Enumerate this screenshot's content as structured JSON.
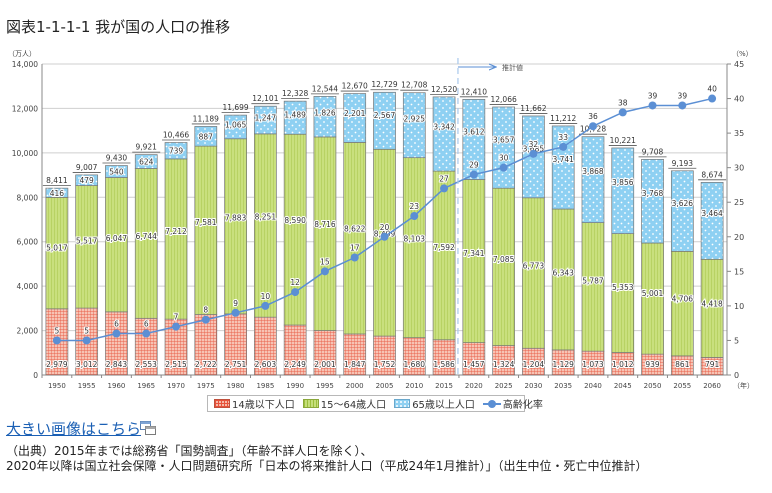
{
  "title": "図表1-1-1-1 我が国の人口の推移",
  "link": {
    "label": "大きい画像はこちら",
    "icon": "window-icon"
  },
  "source": {
    "line1": "（出典）2015年までは総務省「国勢調査」（年齢不詳人口を除く）、",
    "line2": "2020年以降は国立社会保障・人口問題研究所「日本の将来推計人口（平成24年1月推計）」（出生中位・死亡中位推計）"
  },
  "legend": {
    "young": "14歳以下人口",
    "working": "15～64歳人口",
    "elderly": "65歳以上人口",
    "ratio": "高齢化率"
  },
  "colors": {
    "young": "#f5b9a8",
    "young_grid": "#e8523a",
    "working": "#c5de7a",
    "working_stripe": "#9cbf3c",
    "elderly": "#8ed0f2",
    "line": "#5b8fd4",
    "axis": "#888888",
    "grid": "#cccccc"
  },
  "chart_data": {
    "type": "bar",
    "stacked": true,
    "title": "我が国の人口の推移",
    "ylabel": "（万人）",
    "y2label": "（%）",
    "xlabel": "（年）",
    "ylim": [
      0,
      14000
    ],
    "y2lim": [
      0,
      45
    ],
    "yticks": [
      "0",
      "2,000",
      "4,000",
      "6,000",
      "8,000",
      "10,000",
      "12,000",
      "14,000"
    ],
    "y2ticks": [
      "0",
      "5",
      "10",
      "15",
      "20",
      "25",
      "30",
      "35",
      "40",
      "45"
    ],
    "grid": true,
    "legend_position": "bottom",
    "projection_label": "推計値",
    "projection_start": "2020",
    "categories": [
      "1950",
      "1955",
      "1960",
      "1965",
      "1970",
      "1975",
      "1980",
      "1985",
      "1990",
      "1995",
      "2000",
      "2005",
      "2010",
      "2015",
      "2020",
      "2025",
      "2030",
      "2035",
      "2040",
      "2045",
      "2050",
      "2055",
      "2060"
    ],
    "series": [
      {
        "name": "14歳以下人口",
        "values": [
          2979,
          3012,
          2843,
          2553,
          2515,
          2722,
          2751,
          2603,
          2249,
          2001,
          1847,
          1752,
          1680,
          1586,
          1457,
          1324,
          1204,
          1129,
          1073,
          1012,
          939,
          861,
          791
        ]
      },
      {
        "name": "15～64歳人口",
        "values": [
          5017,
          5517,
          6047,
          6744,
          7212,
          7581,
          7883,
          8251,
          8590,
          8716,
          8622,
          8409,
          8103,
          7592,
          7341,
          7085,
          6773,
          6343,
          5787,
          5353,
          5001,
          4706,
          4418
        ]
      },
      {
        "name": "65歳以上人口",
        "values": [
          416,
          479,
          540,
          624,
          739,
          887,
          1065,
          1247,
          1489,
          1826,
          2201,
          2567,
          2925,
          3342,
          3612,
          3657,
          3685,
          3741,
          3868,
          3856,
          3768,
          3626,
          3464
        ]
      }
    ],
    "totals": [
      8411,
      9007,
      9430,
      9921,
      10466,
      11189,
      11699,
      12101,
      12328,
      12544,
      12670,
      12729,
      12708,
      12520,
      12410,
      12066,
      11662,
      11212,
      10728,
      10221,
      9708,
      9193,
      8674
    ],
    "line_series": {
      "name": "高齢化率",
      "axis": "right",
      "values": [
        5,
        5,
        6,
        6,
        7,
        8,
        9,
        10,
        12,
        15,
        17,
        20,
        23,
        27,
        29,
        30,
        32,
        33,
        36,
        38,
        39,
        39,
        40
      ]
    }
  }
}
